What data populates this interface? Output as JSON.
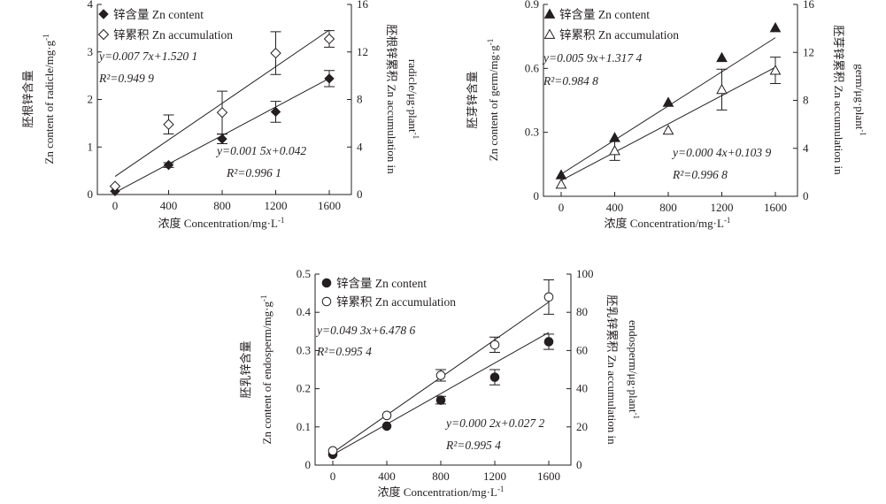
{
  "chart_data": [
    {
      "type": "scatter",
      "x": [
        0,
        400,
        800,
        1200,
        1600
      ],
      "x_ticks": [
        "0",
        "400",
        "800",
        "1200",
        "1600"
      ],
      "xlabel": "浓度 Concentration/mg·L",
      "xlabel_sup": "-1",
      "xlim": [
        0,
        1600
      ],
      "ylabel_left_cn": "胚根锌含量",
      "ylabel_left_en": "Zn content of radicle/mg·g",
      "ylabel_left_sup": "-1",
      "ylim_left": [
        0,
        4
      ],
      "yticks_left": [
        "0",
        "1",
        "2",
        "3",
        "4"
      ],
      "ylabel_right_cn": "胚根锌累积",
      "ylabel_right_en1": "Zn accumulation in",
      "ylabel_right_en2": "radicle/μg·plant",
      "ylabel_right_sup": "-1",
      "ylim_right": [
        0,
        16
      ],
      "yticks_right": [
        "0",
        "4",
        "8",
        "12",
        "16"
      ],
      "legend": {
        "placement": "top-left",
        "content_label": "锌含量 Zn content",
        "accumulation_label": "锌累积 Zn accumulation"
      },
      "series": [
        {
          "name": "锌含量 Zn content",
          "axis": "left",
          "marker": "filled-diamond",
          "values": [
            0.07,
            0.62,
            1.17,
            1.74,
            2.44
          ],
          "errors": [
            0,
            0.05,
            0.1,
            0.22,
            0.17
          ],
          "fit": {
            "slope": 0.0015,
            "intercept": 0.042
          },
          "equation": "y=0.001 5x+0.042",
          "r2": "R²=0.996 1"
        },
        {
          "name": "锌累积 Zn accumulation",
          "axis": "right",
          "marker": "open-diamond",
          "values": [
            0.7,
            5.9,
            6.9,
            11.9,
            13.1
          ],
          "errors": [
            0,
            0.8,
            1.8,
            1.8,
            0.7
          ],
          "fit": {
            "slope": 0.0077,
            "intercept": 1.5201
          },
          "equation": "y=0.007 7x+1.520 1",
          "r2": "R²=0.949 9"
        }
      ]
    },
    {
      "type": "scatter",
      "x": [
        0,
        400,
        800,
        1200,
        1600
      ],
      "x_ticks": [
        "0",
        "400",
        "800",
        "1200",
        "1600"
      ],
      "xlabel": "浓度 Concentration/mg·L",
      "xlabel_sup": "-1",
      "xlim": [
        0,
        1600
      ],
      "ylabel_left_cn": "胚芽锌含量",
      "ylabel_left_en": "Zn content of germ/mg·g",
      "ylabel_left_sup": "-1",
      "ylim_left": [
        0,
        0.9
      ],
      "yticks_left": [
        "0",
        "0.3",
        "0.6",
        "0.9"
      ],
      "ylabel_right_cn": "胚芽锌累积",
      "ylabel_right_en1": "Zn accumulation in",
      "ylabel_right_en2": "germ/μg·plant",
      "ylabel_right_sup": "-1",
      "ylim_right": [
        0,
        16
      ],
      "yticks_right": [
        "0",
        "4",
        "8",
        "12",
        "16"
      ],
      "legend": {
        "placement": "top-left",
        "content_label": "锌含量 Zn content",
        "accumulation_label": "锌累积 Zn accumulation"
      },
      "series": [
        {
          "name": "锌含量 Zn content",
          "axis": "left",
          "marker": "filled-triangle",
          "values": [
            0.1,
            0.275,
            0.44,
            0.65,
            0.79
          ],
          "errors": [
            0,
            0,
            0,
            0,
            0
          ],
          "fit": {
            "slope": 0.0004,
            "intercept": 0.1039
          },
          "equation": "y=0.000 4x+0.103 9",
          "r2": "R²=0.996 8"
        },
        {
          "name": "锌累积 Zn accumulation",
          "axis": "right",
          "marker": "open-triangle",
          "values": [
            1.0,
            3.8,
            5.5,
            8.9,
            10.5
          ],
          "errors": [
            0,
            0.8,
            0,
            1.7,
            1.1
          ],
          "fit": {
            "slope": 0.0059,
            "intercept": 1.3174
          },
          "equation": "y=0.005 9x+1.317 4",
          "r2": "R²=0.984 8"
        }
      ]
    },
    {
      "type": "scatter",
      "x": [
        0,
        400,
        800,
        1200,
        1600
      ],
      "x_ticks": [
        "0",
        "400",
        "800",
        "1200",
        "1600"
      ],
      "xlabel": "浓度 Concentration/mg·L",
      "xlabel_sup": "-1",
      "xlim": [
        0,
        1600
      ],
      "ylabel_left_cn": "胚乳锌含量",
      "ylabel_left_en": "Zn content of endosperm/mg·g",
      "ylabel_left_sup": "-1",
      "ylim_left": [
        0,
        0.5
      ],
      "yticks_left": [
        "0",
        "0.1",
        "0.2",
        "0.3",
        "0.4",
        "0.5"
      ],
      "ylabel_right_cn": "胚乳锌累积",
      "ylabel_right_en1": "Zn accumulation in",
      "ylabel_right_en2": "endosperm/μg·plant",
      "ylabel_right_sup": "-1",
      "ylim_right": [
        0,
        100
      ],
      "yticks_right": [
        "0",
        "20",
        "40",
        "60",
        "80",
        "100"
      ],
      "legend": {
        "placement": "top-left",
        "content_label": "锌含量 Zn content",
        "accumulation_label": "锌累积 Zn accumulation"
      },
      "series": [
        {
          "name": "锌含量 Zn content",
          "axis": "left",
          "marker": "filled-circle",
          "values": [
            0.028,
            0.102,
            0.17,
            0.23,
            0.323
          ],
          "errors": [
            0,
            0,
            0.01,
            0.02,
            0.02
          ],
          "fit": {
            "slope": 0.0002,
            "intercept": 0.0272
          },
          "equation": "y=0.000 2x+0.027 2",
          "r2": "R²=0.995 4"
        },
        {
          "name": "锌累积 Zn accumulation",
          "axis": "right",
          "marker": "open-circle",
          "values": [
            7.5,
            26,
            47,
            63,
            88
          ],
          "errors": [
            0,
            0,
            3,
            4,
            9
          ],
          "fit": {
            "slope": 0.0493,
            "intercept": 6.4786
          },
          "equation": "y=0.049 3x+6.478 6",
          "r2": "R²=0.995 4"
        }
      ]
    }
  ]
}
